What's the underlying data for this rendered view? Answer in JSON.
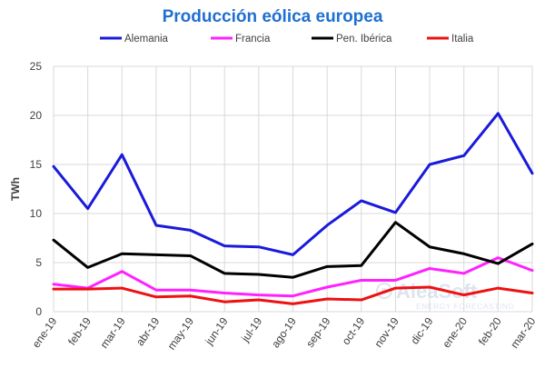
{
  "chart_data": {
    "type": "line",
    "title": "Producción eólica europea",
    "xlabel": "",
    "ylabel": "TWh",
    "ylim": [
      0,
      25
    ],
    "yticks": [
      0,
      5,
      10,
      15,
      20,
      25
    ],
    "grid": true,
    "legend_position": "top",
    "categories": [
      "ene-19",
      "feb-19",
      "mar-19",
      "abr-19",
      "may-19",
      "jun-19",
      "jul-19",
      "ago-19",
      "sep-19",
      "oct-19",
      "nov-19",
      "dic-19",
      "ene-20",
      "feb-20",
      "mar-20"
    ],
    "series": [
      {
        "name": "Alemania",
        "color": "#1a1adb",
        "values": [
          14.8,
          10.5,
          16.0,
          8.8,
          8.3,
          6.7,
          6.6,
          5.8,
          8.8,
          11.3,
          10.1,
          15.0,
          15.9,
          20.2,
          14.1
        ]
      },
      {
        "name": "Francia",
        "color": "#ff22ff",
        "values": [
          2.8,
          2.4,
          4.1,
          2.2,
          2.2,
          1.9,
          1.7,
          1.6,
          2.5,
          3.2,
          3.2,
          4.4,
          3.9,
          5.5,
          4.2
        ]
      },
      {
        "name": "Pen. Ibérica",
        "color": "#000000",
        "values": [
          7.3,
          4.5,
          5.9,
          5.8,
          5.7,
          3.9,
          3.8,
          3.5,
          4.6,
          4.7,
          9.1,
          6.6,
          5.9,
          4.9,
          6.9
        ]
      },
      {
        "name": "Italia",
        "color": "#ee1111",
        "values": [
          2.3,
          2.3,
          2.4,
          1.5,
          1.6,
          1.0,
          1.2,
          0.8,
          1.3,
          1.2,
          2.4,
          2.5,
          1.7,
          2.4,
          1.9
        ]
      }
    ]
  },
  "watermark": {
    "brand": "AleaSoft",
    "tagline": "ENERGY FORECASTING"
  }
}
